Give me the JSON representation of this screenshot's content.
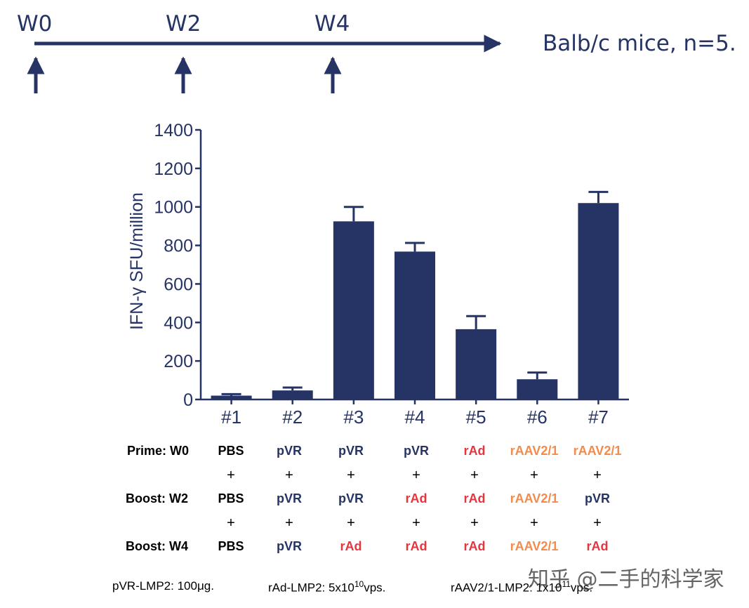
{
  "timeline": {
    "weeks": [
      "W0",
      "W2",
      "W4"
    ],
    "cohort": "Balb/c mice, n=5."
  },
  "chart_data": {
    "type": "bar",
    "title": "",
    "xlabel": "",
    "ylabel": "IFN-γ SFU/million",
    "ylim": [
      0,
      1400
    ],
    "yticks": [
      0,
      200,
      400,
      600,
      800,
      1000,
      1200,
      1400
    ],
    "categories": [
      "#1",
      "#2",
      "#3",
      "#4",
      "#5",
      "#6",
      "#7"
    ],
    "values": [
      20,
      47,
      925,
      768,
      365,
      105,
      1020
    ],
    "errors": [
      8,
      15,
      75,
      45,
      68,
      35,
      58
    ],
    "bar_color": "#253464"
  },
  "regimen": {
    "rows": [
      {
        "label": "Prime: W0",
        "cells": [
          {
            "text": "PBS",
            "kind": "pbs"
          },
          {
            "text": "pVR",
            "kind": "pvr"
          },
          {
            "text": "pVR",
            "kind": "pvr"
          },
          {
            "text": "pVR",
            "kind": "pvr"
          },
          {
            "text": "rAd",
            "kind": "rad"
          },
          {
            "text": "rAAV2/1",
            "kind": "raav"
          },
          {
            "text": "rAAV2/1",
            "kind": "raav"
          }
        ]
      },
      {
        "label": "Boost: W2",
        "cells": [
          {
            "text": "PBS",
            "kind": "pbs"
          },
          {
            "text": "pVR",
            "kind": "pvr"
          },
          {
            "text": "pVR",
            "kind": "pvr"
          },
          {
            "text": "rAd",
            "kind": "rad"
          },
          {
            "text": "rAd",
            "kind": "rad"
          },
          {
            "text": "rAAV2/1",
            "kind": "raav"
          },
          {
            "text": "pVR",
            "kind": "pvr"
          }
        ]
      },
      {
        "label": "Boost: W4",
        "cells": [
          {
            "text": "PBS",
            "kind": "pbs"
          },
          {
            "text": "pVR",
            "kind": "pvr"
          },
          {
            "text": "rAd",
            "kind": "rad"
          },
          {
            "text": "rAd",
            "kind": "rad"
          },
          {
            "text": "rAd",
            "kind": "rad"
          },
          {
            "text": "rAAV2/1",
            "kind": "raav"
          },
          {
            "text": "rAd",
            "kind": "rad"
          }
        ]
      }
    ],
    "plus": "+"
  },
  "footnotes": {
    "pvr": "pVR-LMP2: 100μg.",
    "rad_pre": "rAd-LMP2: 5x10",
    "rad_exp": "10",
    "rad_post": "vps.",
    "raav_pre": "rAAV2/1-LMP2: 1x10",
    "raav_exp": "11",
    "raav_post": "vps."
  },
  "watermark": "知乎 @二手的科学家",
  "colors": {
    "navy": "#253464",
    "pbs": "#000000",
    "pvr": "#253464",
    "rad": "#e8343e",
    "raav": "#f58a4b"
  }
}
